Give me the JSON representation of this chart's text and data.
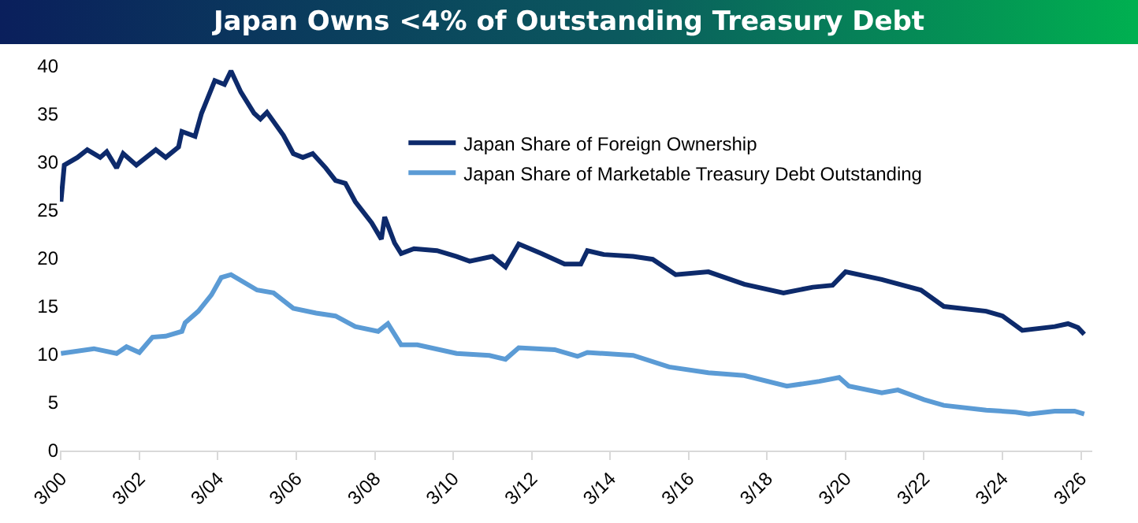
{
  "chart_data": {
    "type": "line",
    "title": "Japan Owns <4% of Outstanding Treasury Debt",
    "legend": "top",
    "grid": false,
    "marker": "none",
    "line_style": "solid",
    "xlim": [
      "2000-02-20",
      "2026-06-15"
    ],
    "xticks": [
      {
        "value": "2000-03-01",
        "label": "3/00"
      },
      {
        "value": "2002-03-01",
        "label": "3/02"
      },
      {
        "value": "2004-03-01",
        "label": "3/04"
      },
      {
        "value": "2006-03-01",
        "label": "3/06"
      },
      {
        "value": "2008-03-01",
        "label": "3/08"
      },
      {
        "value": "2010-03-01",
        "label": "3/10"
      },
      {
        "value": "2012-03-01",
        "label": "3/12"
      },
      {
        "value": "2014-03-01",
        "label": "3/14"
      },
      {
        "value": "2016-03-01",
        "label": "3/16"
      },
      {
        "value": "2018-03-01",
        "label": "3/18"
      },
      {
        "value": "2020-03-01",
        "label": "3/20"
      },
      {
        "value": "2022-03-01",
        "label": "3/22"
      },
      {
        "value": "2024-03-01",
        "label": "3/24"
      },
      {
        "value": "2026-03-01",
        "label": "3/26"
      }
    ],
    "ylim": [
      0,
      40
    ],
    "yticks": [
      0,
      5,
      10,
      15,
      20,
      25,
      30,
      35,
      40
    ],
    "series": [
      {
        "name": "Japan Share of Foreign Ownership",
        "color": "#0d2a6b",
        "x": [
          "2000-03",
          "2000-04",
          "2000-08",
          "2000-11",
          "2001-03",
          "2001-05",
          "2001-08",
          "2001-10",
          "2002-02",
          "2002-08",
          "2002-11",
          "2003-03",
          "2003-04",
          "2003-08",
          "2003-10",
          "2004-02",
          "2004-05",
          "2004-07",
          "2004-10",
          "2005-02",
          "2005-04",
          "2005-06",
          "2005-11",
          "2006-02",
          "2006-05",
          "2006-08",
          "2006-12",
          "2007-03",
          "2007-06",
          "2007-09",
          "2008-02",
          "2008-05",
          "2008-06",
          "2008-09",
          "2008-11",
          "2009-03",
          "2009-10",
          "2010-04",
          "2010-08",
          "2011-03",
          "2011-07",
          "2011-11",
          "2012-06",
          "2013-01",
          "2013-06",
          "2013-08",
          "2014-01",
          "2014-10",
          "2015-04",
          "2015-11",
          "2016-09",
          "2017-08",
          "2018-08",
          "2019-05",
          "2019-11",
          "2020-03",
          "2021-02",
          "2022-02",
          "2022-09",
          "2023-10",
          "2024-03",
          "2024-09",
          "2025-07",
          "2025-11",
          "2026-02",
          "2026-04"
        ],
        "values": [
          25.9,
          29.7,
          30.5,
          31.3,
          30.5,
          31.1,
          29.4,
          30.9,
          29.7,
          31.3,
          30.5,
          31.6,
          33.2,
          32.7,
          35.1,
          38.5,
          38.1,
          39.5,
          37.3,
          35.1,
          34.5,
          35.2,
          32.8,
          30.9,
          30.5,
          30.9,
          29.4,
          28.1,
          27.8,
          25.9,
          23.7,
          22.0,
          24.3,
          21.6,
          20.5,
          21.0,
          20.8,
          20.2,
          19.7,
          20.2,
          19.1,
          21.5,
          20.5,
          19.4,
          19.4,
          20.8,
          20.4,
          20.2,
          19.9,
          18.3,
          18.6,
          17.3,
          16.4,
          17.0,
          17.2,
          18.6,
          17.8,
          16.7,
          15.0,
          14.5,
          14.0,
          12.5,
          12.9,
          13.2,
          12.8,
          12.1
        ]
      },
      {
        "name": "Japan Share of Marketable Treasury Debt Outstanding",
        "color": "#5b9bd5",
        "x": [
          "2000-03",
          "2001-01",
          "2001-08",
          "2001-11",
          "2002-03",
          "2002-07",
          "2002-11",
          "2003-04",
          "2003-05",
          "2003-09",
          "2004-01",
          "2004-04",
          "2004-07",
          "2005-03",
          "2005-08",
          "2006-02",
          "2006-09",
          "2007-03",
          "2007-09",
          "2008-04",
          "2008-07",
          "2008-11",
          "2009-04",
          "2010-04",
          "2011-02",
          "2011-07",
          "2011-11",
          "2012-10",
          "2013-05",
          "2013-08",
          "2014-10",
          "2015-09",
          "2016-09",
          "2017-08",
          "2018-09",
          "2019-07",
          "2020-01",
          "2020-04",
          "2021-02",
          "2021-07",
          "2022-03",
          "2022-09",
          "2023-10",
          "2024-07",
          "2024-11",
          "2025-07",
          "2026-01",
          "2026-04"
        ],
        "values": [
          10.1,
          10.6,
          10.1,
          10.8,
          10.2,
          11.8,
          11.9,
          12.4,
          13.3,
          14.5,
          16.2,
          18.0,
          18.3,
          16.7,
          16.4,
          14.8,
          14.3,
          14.0,
          12.9,
          12.4,
          13.2,
          11.0,
          11.0,
          10.1,
          9.9,
          9.5,
          10.7,
          10.5,
          9.8,
          10.2,
          9.9,
          8.7,
          8.1,
          7.8,
          6.7,
          7.2,
          7.6,
          6.7,
          6.0,
          6.3,
          5.3,
          4.7,
          4.2,
          4.0,
          3.8,
          4.1,
          4.1,
          3.8
        ]
      }
    ]
  }
}
